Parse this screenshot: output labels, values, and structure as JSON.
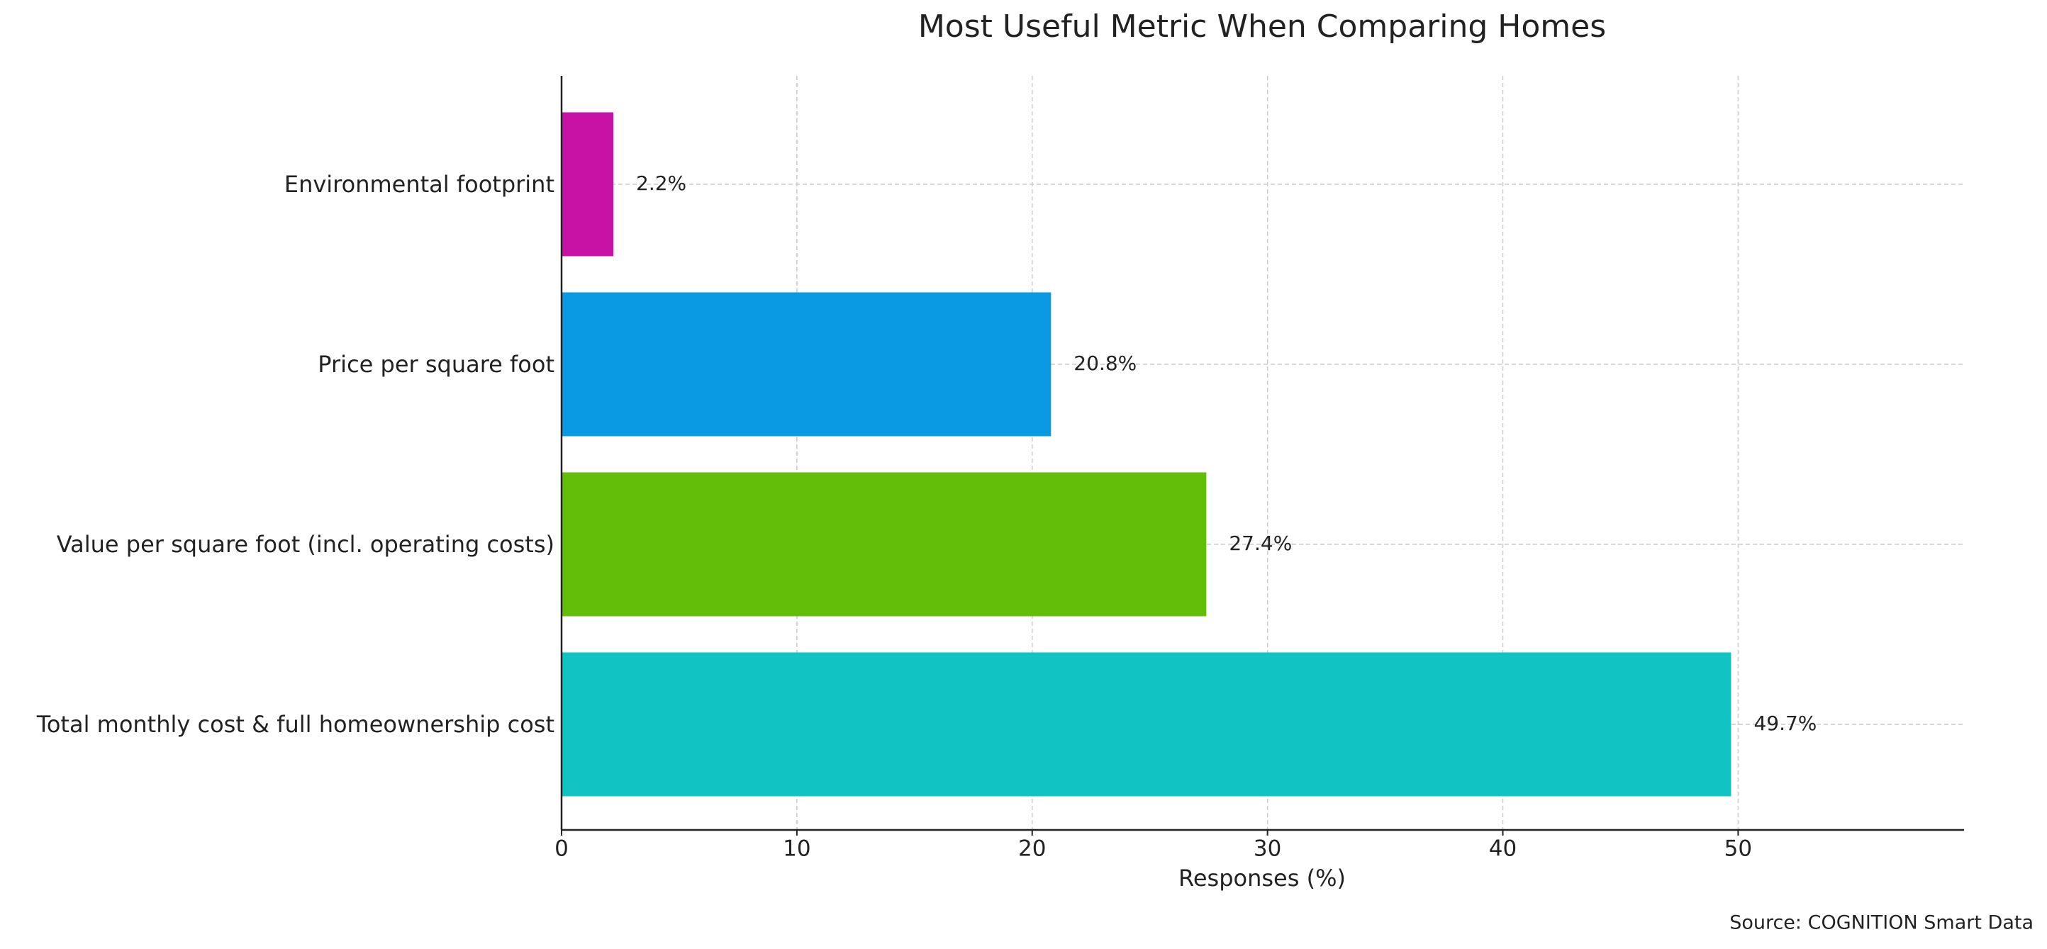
{
  "chart_data": {
    "type": "barh",
    "title": "Most Useful Metric When Comparing Homes",
    "categories": [
      "Total monthly cost & full homeownership cost",
      "Value per square foot (incl. operating costs)",
      "Price per square foot",
      "Environmental footprint"
    ],
    "values": [
      49.7,
      27.4,
      20.8,
      2.2
    ],
    "value_labels": [
      "49.7%",
      "27.4%",
      "20.8%",
      "2.2%"
    ],
    "colors": [
      "#12c3c3",
      "#62be08",
      "#0a9ae3",
      "#c712a5"
    ],
    "xlabel": "Responses (%)",
    "xlim": [
      0,
      59.6
    ],
    "xticks": [
      0,
      10,
      20,
      30,
      40,
      50
    ],
    "grid": true,
    "source": "Source: COGNITION Smart Data"
  }
}
